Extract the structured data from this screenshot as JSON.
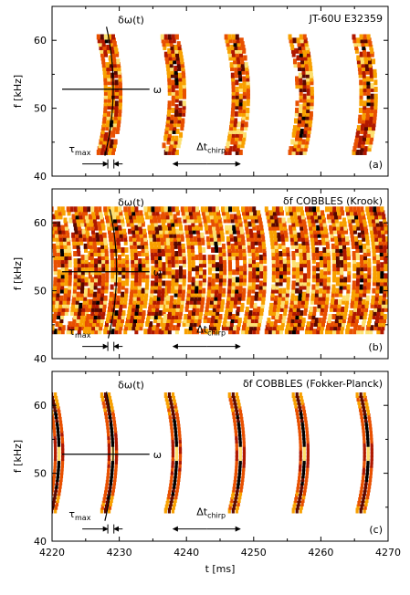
{
  "figure": {
    "xlabel": "t [ms]",
    "x_ticks": [
      "4220",
      "4230",
      "4240",
      "4250",
      "4260",
      "4270"
    ]
  },
  "chart_data": [
    {
      "type": "heatmap",
      "title": "JT-60U E32359",
      "panel_label": "(a)",
      "ylabel": "f [kHz]",
      "xlim": [
        4220,
        4270
      ],
      "ylim": [
        40,
        65
      ],
      "y_ticks": [
        "40",
        "50",
        "60"
      ],
      "chirp_times": [
        4228.5,
        4238.0,
        4247.5,
        4257.0,
        4266.5
      ],
      "band_center_khz": 52,
      "annotations": {
        "delta_omega": "δω(t)",
        "omega": "ω",
        "tau": "τ",
        "tau_sub": "max",
        "dt": "Δt",
        "dt_sub": "chirp"
      },
      "marker_values": {
        "tau_start": 4224.5,
        "tau_end": 4230.5,
        "dt_start": 4238.0,
        "dt_end": 4248.0,
        "omega_khz": 52.8,
        "omega_t_start": 4221.5,
        "omega_t_end": 4234.5
      }
    },
    {
      "type": "heatmap",
      "title": "δf COBBLES (Krook)",
      "panel_label": "(b)",
      "ylabel": "f [kHz]",
      "xlim": [
        4220,
        4270
      ],
      "ylim": [
        40,
        65
      ],
      "y_ticks": [
        "40",
        "50",
        "60"
      ],
      "chirp_times": [
        4221.0,
        4224.0,
        4226.5,
        4229.5,
        4232.5,
        4235.5,
        4238.0,
        4241.0,
        4244.0,
        4247.0,
        4250.0,
        4253.5,
        4256.5,
        4259.5,
        4262.5,
        4265.5,
        4268.5
      ],
      "band_center_khz": 53,
      "annotations": {
        "delta_omega": "δω(t)",
        "omega": "ω",
        "tau": "τ",
        "tau_sub": "max",
        "dt": "Δt",
        "dt_sub": "chirp"
      },
      "marker_values": {
        "tau_start": 4224.5,
        "tau_end": 4230.5,
        "dt_start": 4238.0,
        "dt_end": 4248.0,
        "omega_khz": 52.8,
        "omega_t_start": 4221.5,
        "omega_t_end": 4234.5
      }
    },
    {
      "type": "heatmap",
      "title": "δf COBBLES (Fokker-Planck)",
      "panel_label": "(c)",
      "ylabel": "f [kHz]",
      "xlim": [
        4220,
        4270
      ],
      "ylim": [
        40,
        65
      ],
      "y_ticks": [
        "40",
        "50",
        "60"
      ],
      "chirp_times": [
        4220.5,
        4228.5,
        4238.0,
        4247.5,
        4257.0,
        4266.5
      ],
      "band_center_khz": 53,
      "annotations": {
        "delta_omega": "δω(t)",
        "omega": "ω",
        "tau": "τ",
        "tau_sub": "max",
        "dt": "Δt",
        "dt_sub": "chirp"
      },
      "marker_values": {
        "tau_start": 4224.5,
        "tau_end": 4230.5,
        "dt_start": 4238.0,
        "dt_end": 4248.0,
        "omega_khz": 52.8,
        "omega_t_start": 4221.5,
        "omega_t_end": 4234.5
      }
    }
  ]
}
